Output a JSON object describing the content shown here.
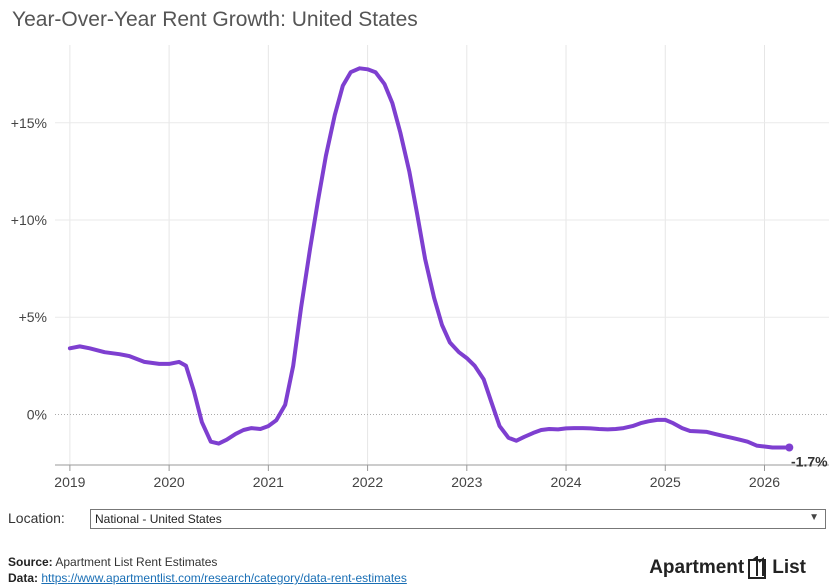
{
  "title": "Year-Over-Year Rent Growth: United States",
  "chart_data": {
    "type": "line",
    "title": "Year-Over-Year Rent Growth: United States",
    "xlabel": "",
    "ylabel": "",
    "x_ticks": [
      "2019",
      "2020",
      "2021",
      "2022",
      "2023",
      "2024",
      "2025",
      "2026"
    ],
    "y_ticks": [
      {
        "value": 0,
        "label": "0%"
      },
      {
        "value": 5,
        "label": "+5%"
      },
      {
        "value": 10,
        "label": "+10%"
      },
      {
        "value": 15,
        "label": "+15%"
      }
    ],
    "xlim": [
      2018.85,
      2026.65
    ],
    "ylim": [
      -2.6,
      19.0
    ],
    "grid": true,
    "zero_line_dotted": true,
    "line_color": "#7e3fd0",
    "end_label": "-1.7%",
    "series": [
      {
        "name": "",
        "x": [
          2019.0,
          2019.1,
          2019.2,
          2019.35,
          2019.5,
          2019.6,
          2019.75,
          2019.9,
          2020.0,
          2020.1,
          2020.17,
          2020.25,
          2020.33,
          2020.42,
          2020.5,
          2020.58,
          2020.67,
          2020.75,
          2020.83,
          2020.92,
          2021.0,
          2021.08,
          2021.17,
          2021.25,
          2021.33,
          2021.42,
          2021.5,
          2021.58,
          2021.67,
          2021.75,
          2021.83,
          2021.92,
          2022.0,
          2022.08,
          2022.17,
          2022.25,
          2022.33,
          2022.42,
          2022.5,
          2022.58,
          2022.67,
          2022.75,
          2022.83,
          2022.92,
          2023.0,
          2023.08,
          2023.17,
          2023.25,
          2023.33,
          2023.42,
          2023.5,
          2023.58,
          2023.67,
          2023.75,
          2023.83,
          2023.92,
          2024.0,
          2024.08,
          2024.17,
          2024.25,
          2024.33,
          2024.42,
          2024.5,
          2024.58,
          2024.67,
          2024.75,
          2024.83,
          2024.92,
          2025.0,
          2025.08,
          2025.17,
          2025.25,
          2025.33,
          2025.42,
          2025.5,
          2025.58,
          2025.67,
          2025.75,
          2025.83,
          2025.92,
          2026.0,
          2026.08,
          2026.17,
          2026.25
        ],
        "y": [
          3.4,
          3.5,
          3.4,
          3.2,
          3.1,
          3.0,
          2.7,
          2.6,
          2.6,
          2.7,
          2.5,
          1.2,
          -0.4,
          -1.4,
          -1.5,
          -1.3,
          -1.0,
          -0.8,
          -0.7,
          -0.75,
          -0.6,
          -0.3,
          0.5,
          2.5,
          5.5,
          8.5,
          11.0,
          13.3,
          15.4,
          16.9,
          17.6,
          17.8,
          17.75,
          17.6,
          17.0,
          16.0,
          14.5,
          12.5,
          10.3,
          8.0,
          6.0,
          4.6,
          3.7,
          3.2,
          2.9,
          2.5,
          1.8,
          0.6,
          -0.6,
          -1.2,
          -1.35,
          -1.15,
          -0.95,
          -0.8,
          -0.75,
          -0.77,
          -0.72,
          -0.7,
          -0.7,
          -0.72,
          -0.75,
          -0.77,
          -0.75,
          -0.7,
          -0.6,
          -0.45,
          -0.35,
          -0.28,
          -0.28,
          -0.45,
          -0.7,
          -0.85,
          -0.87,
          -0.9,
          -1.0,
          -1.1,
          -1.2,
          -1.3,
          -1.4,
          -1.6,
          -1.65,
          -1.7,
          -1.7,
          -1.7
        ]
      }
    ]
  },
  "location": {
    "label": "Location:",
    "value": "National - United States",
    "caret": "▼"
  },
  "footer": {
    "source_label": "Source:",
    "source_text": "Apartment List Rent Estimates",
    "data_label": "Data:",
    "data_link": "https://www.apartmentlist.com/research/category/data-rent-estimates"
  },
  "logo": {
    "left": "Apartment",
    "right": "List"
  }
}
